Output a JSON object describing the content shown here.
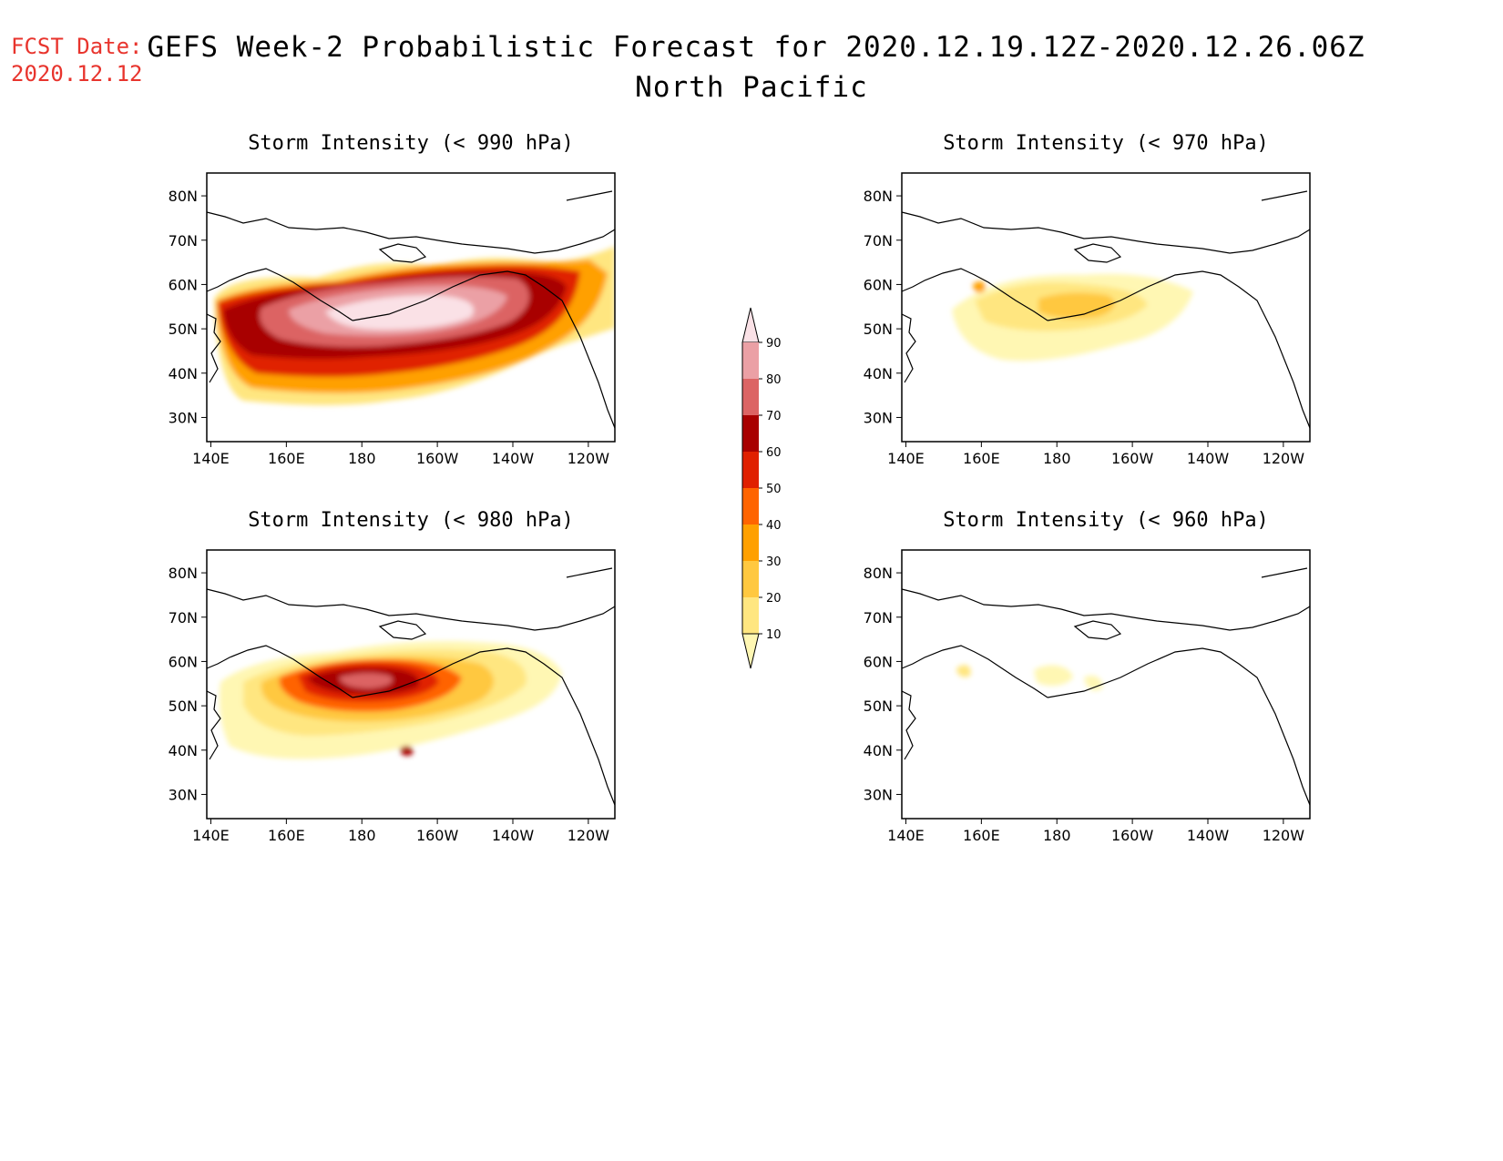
{
  "header": {
    "fcst_label": "FCST Date:",
    "fcst_date": "2020.12.12",
    "title_line1": "GEFS Week-2 Probabilistic Forecast for 2020.12.19.12Z-2020.12.26.06Z",
    "title_line2": "North Pacific"
  },
  "axes": {
    "x_ticks": [
      "140E",
      "160E",
      "180",
      "160W",
      "140W",
      "120W"
    ],
    "y_ticks": [
      "80N",
      "70N",
      "60N",
      "50N",
      "40N",
      "30N"
    ]
  },
  "panels": [
    {
      "id": "p990",
      "title": "Storm Intensity (< 990 hPa)"
    },
    {
      "id": "p970",
      "title": "Storm Intensity (< 970 hPa)"
    },
    {
      "id": "p980",
      "title": "Storm Intensity (< 980 hPa)"
    },
    {
      "id": "p960",
      "title": "Storm Intensity (< 960 hPa)"
    }
  ],
  "colorbar": {
    "levels": [
      "10",
      "20",
      "30",
      "40",
      "50",
      "60",
      "70",
      "80",
      "90"
    ],
    "colors": [
      "#fff7b3",
      "#ffe680",
      "#ffc840",
      "#ffa000",
      "#ff6400",
      "#e02000",
      "#a80000",
      "#dc6464",
      "#eba0a5",
      "#fae1e6"
    ]
  }
}
